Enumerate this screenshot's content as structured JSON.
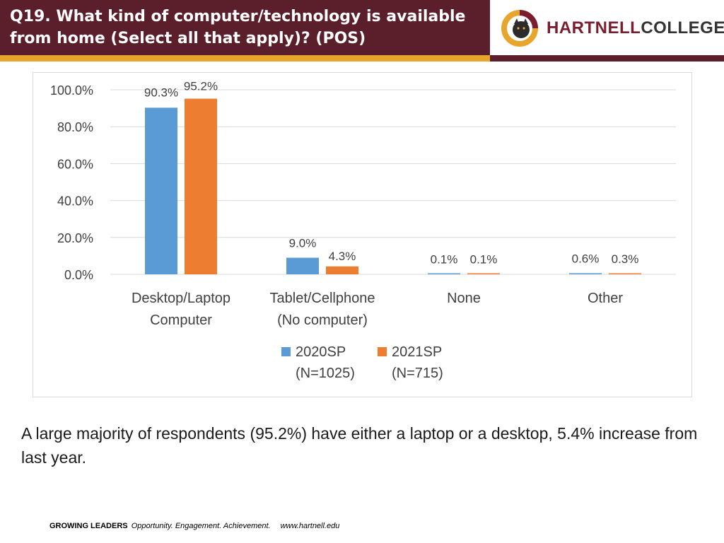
{
  "header": {
    "title": "Q19. What kind of computer/technology is available from home (Select all that apply)? (POS)",
    "logo_text_part1": "HARTNELL",
    "logo_text_part2": "COLLEGE",
    "colors": {
      "header_bg": "#5a1f2b",
      "accent_strip": "#e8a52c"
    }
  },
  "chart_data": {
    "type": "bar",
    "categories": [
      [
        "Desktop/Laptop",
        "Computer"
      ],
      [
        "Tablet/Cellphone",
        "(No computer)"
      ],
      [
        "None"
      ],
      [
        "Other"
      ]
    ],
    "series": [
      {
        "name": [
          "2020SP",
          "(N=1025)"
        ],
        "values": [
          90.3,
          9.0,
          0.1,
          0.6
        ],
        "labels": [
          "90.3%",
          "9.0%",
          "0.1%",
          "0.6%"
        ],
        "color": "#5b9bd5"
      },
      {
        "name": [
          "2021SP",
          "(N=715)"
        ],
        "values": [
          95.2,
          4.3,
          0.1,
          0.3
        ],
        "labels": [
          "95.2%",
          "4.3%",
          "0.1%",
          "0.3%"
        ],
        "color": "#ed7d31"
      }
    ],
    "ylim": [
      0,
      100
    ],
    "yticks": [
      0,
      20,
      40,
      60,
      80,
      100
    ],
    "ytick_labels": [
      "0.0%",
      "20.0%",
      "40.0%",
      "60.0%",
      "80.0%",
      "100.0%"
    ],
    "grid": true,
    "legend_position": "bottom"
  },
  "caption": "A large majority of respondents (95.2%) have either a laptop or a desktop, 5.4% increase from last year.",
  "footer": {
    "brand": "GROWING LEADERS",
    "motto": "Opportunity. Engagement. Achievement.",
    "url": "www.hartnell.edu"
  }
}
